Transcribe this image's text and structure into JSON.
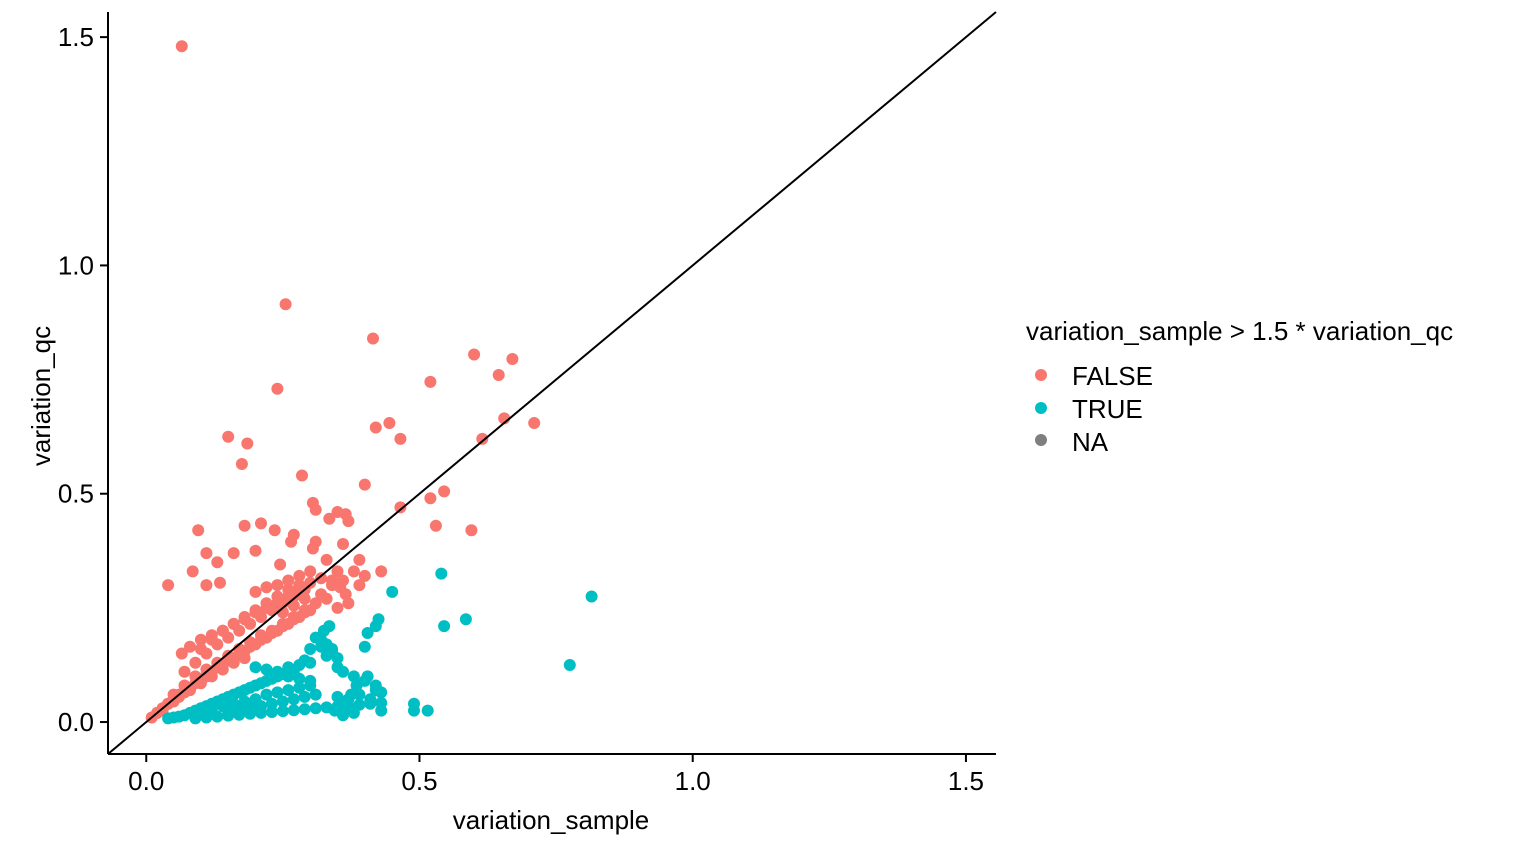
{
  "chart_data": {
    "type": "scatter",
    "title": "",
    "xlabel": "variation_sample",
    "ylabel": "variation_qc",
    "xlim": [
      -0.07,
      1.555
    ],
    "ylim": [
      -0.07,
      1.555
    ],
    "x_ticks": [
      0.0,
      0.5,
      1.0,
      1.5
    ],
    "y_ticks": [
      0.0,
      0.5,
      1.0,
      1.5
    ],
    "x_tick_labels": [
      "0.0",
      "0.5",
      "1.0",
      "1.5"
    ],
    "y_tick_labels": [
      "0.0",
      "0.5",
      "1.0",
      "1.5"
    ],
    "grid": false,
    "reference_line": {
      "slope": 1,
      "intercept": 0,
      "color": "#000000"
    },
    "legend": {
      "title": "variation_sample > 1.5 * variation_qc",
      "placement": "right",
      "entries": [
        {
          "label": "FALSE",
          "color": "#F8766D"
        },
        {
          "label": "TRUE",
          "color": "#00BFC4"
        },
        {
          "label": "NA",
          "color": "#7F7F7F"
        }
      ]
    },
    "series": [
      {
        "name": "FALSE",
        "color": "#F8766D",
        "x": [
          0.065,
          0.255,
          0.415,
          0.6,
          0.67,
          0.645,
          0.52,
          0.24,
          0.15,
          0.185,
          0.42,
          0.465,
          0.655,
          0.71,
          0.615,
          0.445,
          0.175,
          0.285,
          0.4,
          0.52,
          0.545,
          0.465,
          0.595,
          0.53,
          0.35,
          0.365,
          0.37,
          0.305,
          0.31,
          0.335,
          0.095,
          0.11,
          0.235,
          0.265,
          0.305,
          0.245,
          0.2,
          0.16,
          0.13,
          0.04,
          0.085,
          0.11,
          0.135,
          0.33,
          0.36,
          0.39,
          0.38,
          0.35,
          0.34,
          0.355,
          0.365,
          0.18,
          0.21,
          0.27,
          0.31,
          0.065,
          0.08,
          0.1,
          0.12,
          0.14,
          0.16,
          0.18,
          0.2,
          0.22,
          0.24,
          0.26,
          0.28,
          0.3,
          0.32,
          0.05,
          0.07,
          0.09,
          0.11,
          0.13,
          0.15,
          0.17,
          0.19,
          0.21,
          0.23,
          0.25,
          0.27,
          0.29,
          0.31,
          0.02,
          0.04,
          0.06,
          0.08,
          0.1,
          0.12,
          0.14,
          0.16,
          0.18,
          0.2,
          0.22,
          0.24,
          0.26,
          0.28,
          0.3,
          0.03,
          0.05,
          0.07,
          0.09,
          0.11,
          0.13,
          0.15,
          0.17,
          0.19,
          0.21,
          0.23,
          0.25,
          0.27,
          0.29,
          0.07,
          0.09,
          0.11,
          0.13,
          0.15,
          0.17,
          0.19,
          0.21,
          0.23,
          0.25,
          0.27,
          0.29,
          0.1,
          0.12,
          0.14,
          0.16,
          0.18,
          0.2,
          0.22,
          0.24,
          0.26,
          0.28,
          0.2,
          0.22,
          0.24,
          0.26,
          0.28,
          0.3,
          0.25,
          0.27,
          0.29,
          0.01,
          0.02,
          0.03,
          0.04,
          0.05,
          0.06,
          0.08,
          0.1,
          0.12,
          0.14,
          0.16,
          0.18,
          0.34,
          0.36,
          0.33,
          0.37,
          0.35,
          0.32,
          0.39,
          0.4,
          0.43
        ],
        "y": [
          1.48,
          0.915,
          0.84,
          0.805,
          0.795,
          0.76,
          0.745,
          0.73,
          0.625,
          0.61,
          0.645,
          0.62,
          0.665,
          0.655,
          0.62,
          0.655,
          0.565,
          0.54,
          0.52,
          0.49,
          0.505,
          0.47,
          0.42,
          0.43,
          0.46,
          0.455,
          0.44,
          0.48,
          0.465,
          0.445,
          0.42,
          0.37,
          0.42,
          0.395,
          0.38,
          0.345,
          0.375,
          0.37,
          0.35,
          0.3,
          0.33,
          0.3,
          0.305,
          0.355,
          0.39,
          0.355,
          0.33,
          0.33,
          0.31,
          0.295,
          0.28,
          0.43,
          0.435,
          0.41,
          0.395,
          0.15,
          0.165,
          0.18,
          0.19,
          0.2,
          0.215,
          0.225,
          0.24,
          0.25,
          0.26,
          0.275,
          0.29,
          0.305,
          0.315,
          0.06,
          0.08,
          0.1,
          0.115,
          0.13,
          0.145,
          0.16,
          0.175,
          0.19,
          0.2,
          0.215,
          0.23,
          0.245,
          0.26,
          0.02,
          0.04,
          0.06,
          0.075,
          0.095,
          0.11,
          0.125,
          0.14,
          0.155,
          0.17,
          0.185,
          0.2,
          0.215,
          0.23,
          0.245,
          0.025,
          0.045,
          0.065,
          0.085,
          0.1,
          0.12,
          0.135,
          0.15,
          0.165,
          0.18,
          0.195,
          0.21,
          0.225,
          0.24,
          0.11,
          0.13,
          0.15,
          0.17,
          0.185,
          0.2,
          0.215,
          0.23,
          0.245,
          0.26,
          0.275,
          0.29,
          0.16,
          0.18,
          0.2,
          0.215,
          0.23,
          0.245,
          0.26,
          0.275,
          0.29,
          0.3,
          0.285,
          0.295,
          0.3,
          0.31,
          0.32,
          0.33,
          0.24,
          0.255,
          0.27,
          0.01,
          0.02,
          0.03,
          0.04,
          0.05,
          0.055,
          0.07,
          0.085,
          0.1,
          0.115,
          0.13,
          0.14,
          0.3,
          0.31,
          0.27,
          0.26,
          0.25,
          0.28,
          0.3,
          0.32,
          0.33
        ]
      },
      {
        "name": "TRUE",
        "color": "#00BFC4",
        "x": [
          0.815,
          0.775,
          0.585,
          0.545,
          0.54,
          0.45,
          0.425,
          0.42,
          0.405,
          0.4,
          0.42,
          0.43,
          0.37,
          0.36,
          0.345,
          0.35,
          0.375,
          0.385,
          0.405,
          0.43,
          0.49,
          0.49,
          0.515,
          0.335,
          0.325,
          0.31,
          0.32,
          0.3,
          0.34,
          0.33,
          0.29,
          0.3,
          0.28,
          0.26,
          0.27,
          0.25,
          0.24,
          0.23,
          0.22,
          0.21,
          0.2,
          0.19,
          0.18,
          0.17,
          0.16,
          0.15,
          0.14,
          0.13,
          0.12,
          0.11,
          0.1,
          0.09,
          0.08,
          0.07,
          0.06,
          0.05,
          0.04,
          0.35,
          0.36,
          0.38,
          0.4,
          0.42,
          0.3,
          0.28,
          0.26,
          0.24,
          0.22,
          0.2,
          0.18,
          0.16,
          0.14,
          0.12,
          0.1,
          0.32,
          0.33,
          0.34,
          0.35,
          0.2,
          0.22,
          0.24,
          0.26,
          0.28,
          0.3,
          0.15,
          0.17,
          0.19,
          0.21,
          0.23,
          0.25,
          0.27,
          0.29,
          0.31,
          0.09,
          0.11,
          0.13,
          0.15,
          0.17,
          0.19,
          0.21,
          0.23,
          0.25,
          0.27,
          0.29,
          0.31,
          0.33,
          0.35,
          0.37,
          0.39,
          0.41,
          0.43,
          0.38,
          0.36,
          0.39,
          0.41
        ],
        "y": [
          0.275,
          0.125,
          0.225,
          0.21,
          0.325,
          0.285,
          0.225,
          0.21,
          0.195,
          0.165,
          0.07,
          0.065,
          0.05,
          0.035,
          0.025,
          0.055,
          0.06,
          0.08,
          0.1,
          0.025,
          0.025,
          0.04,
          0.025,
          0.21,
          0.2,
          0.185,
          0.165,
          0.16,
          0.155,
          0.145,
          0.135,
          0.13,
          0.125,
          0.12,
          0.11,
          0.105,
          0.1,
          0.095,
          0.09,
          0.085,
          0.08,
          0.075,
          0.07,
          0.065,
          0.06,
          0.055,
          0.05,
          0.045,
          0.04,
          0.035,
          0.03,
          0.025,
          0.02,
          0.015,
          0.012,
          0.01,
          0.008,
          0.12,
          0.11,
          0.1,
          0.09,
          0.08,
          0.08,
          0.075,
          0.07,
          0.065,
          0.06,
          0.05,
          0.045,
          0.04,
          0.035,
          0.025,
          0.02,
          0.18,
          0.17,
          0.16,
          0.14,
          0.12,
          0.115,
          0.11,
          0.1,
          0.095,
          0.09,
          0.02,
          0.025,
          0.03,
          0.035,
          0.04,
          0.045,
          0.05,
          0.055,
          0.06,
          0.008,
          0.01,
          0.012,
          0.014,
          0.016,
          0.018,
          0.02,
          0.022,
          0.024,
          0.026,
          0.028,
          0.03,
          0.032,
          0.034,
          0.036,
          0.038,
          0.04,
          0.042,
          0.02,
          0.015,
          0.06,
          0.05
        ]
      }
    ]
  }
}
